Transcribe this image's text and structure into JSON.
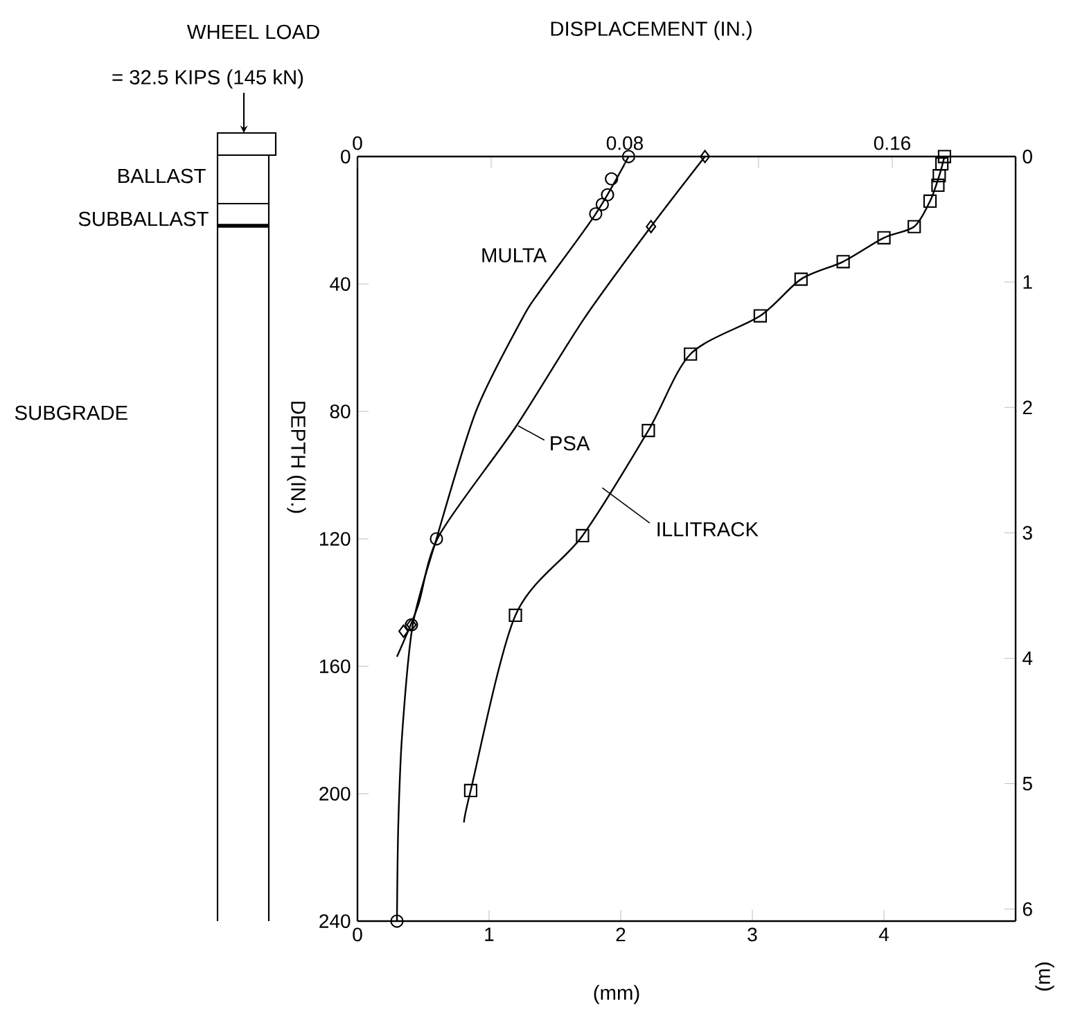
{
  "chart_data": {
    "type": "line",
    "x2label": "DISPLACEMENT (IN.)",
    "xlabel": "(mm)",
    "ylabel": "DEPTH (IN.)",
    "y2label": "(m)",
    "xlim": [
      0,
      5
    ],
    "xticks": [
      0,
      1,
      2,
      3,
      4
    ],
    "x2lim": [
      0,
      0.1969
    ],
    "x2ticks": [
      0,
      {
        "value": 0.04,
        "label": null
      },
      0.08,
      {
        "value": 0.12,
        "label": null
      },
      0.16
    ],
    "ylim": [
      240,
      0
    ],
    "yticks": [
      0,
      40,
      80,
      120,
      160,
      200,
      240
    ],
    "y2lim": [
      6.096,
      0
    ],
    "y2ticks": [
      0,
      1,
      2,
      3,
      4,
      5,
      6
    ],
    "grid": false,
    "line_style": "solid",
    "annotations": [
      "WHEEL LOAD",
      "= 32.5 KIPS (145 kN)",
      "BALLAST",
      "SUBBALLAST",
      "SUBGRADE"
    ],
    "series": [
      {
        "name": "MULTA",
        "marker": "none",
        "color": "#000000",
        "x": [
          2.06,
          1.81,
          1.39,
          1.25,
          0.9,
          0.6,
          0.42,
          0.34,
          0.31,
          0.3
        ],
        "values": [
          0,
          18,
          42,
          51,
          80,
          120,
          147,
          181,
          210,
          240
        ]
      },
      {
        "name": "PSA",
        "marker": "none",
        "color": "#000000",
        "x": [
          2.64,
          2.23,
          1.72,
          1.2,
          0.62,
          0.46,
          0.3
        ],
        "values": [
          0,
          22,
          51,
          85,
          119,
          141,
          157
        ]
      },
      {
        "name": "ILLITRACK",
        "marker": "none",
        "color": "#000000",
        "x": [
          4.46,
          4.42,
          4.35,
          4.23,
          4.0,
          3.69,
          3.37,
          3.06,
          2.53,
          2.21,
          1.71,
          1.2,
          0.86,
          0.81
        ],
        "values": [
          0,
          6,
          14,
          22,
          25.5,
          33,
          38.5,
          50,
          62,
          86,
          119,
          144,
          199,
          209
        ]
      },
      {
        "type": "scatter",
        "marker": "circle",
        "color": "#000000",
        "x": [
          2.06,
          1.93,
          1.9,
          1.86,
          1.81,
          0.6,
          0.41,
          0.3
        ],
        "values": [
          0,
          7,
          12,
          15,
          18,
          120,
          147,
          240
        ]
      },
      {
        "type": "scatter",
        "marker": "diamond",
        "color": "#000000",
        "x": [
          2.64,
          2.23,
          0.41,
          0.35
        ],
        "values": [
          0,
          22,
          147,
          149
        ]
      },
      {
        "type": "scatter",
        "marker": "square",
        "color": "#000000",
        "x": [
          4.46,
          4.44,
          4.42,
          4.41,
          4.35,
          4.23,
          4.0,
          3.69,
          3.37,
          3.06,
          2.53,
          2.21,
          1.71,
          1.2,
          0.86
        ],
        "values": [
          0,
          2.3,
          6,
          9,
          14,
          22,
          25.5,
          33,
          38.5,
          50,
          62,
          86,
          119,
          144,
          199
        ]
      }
    ]
  }
}
